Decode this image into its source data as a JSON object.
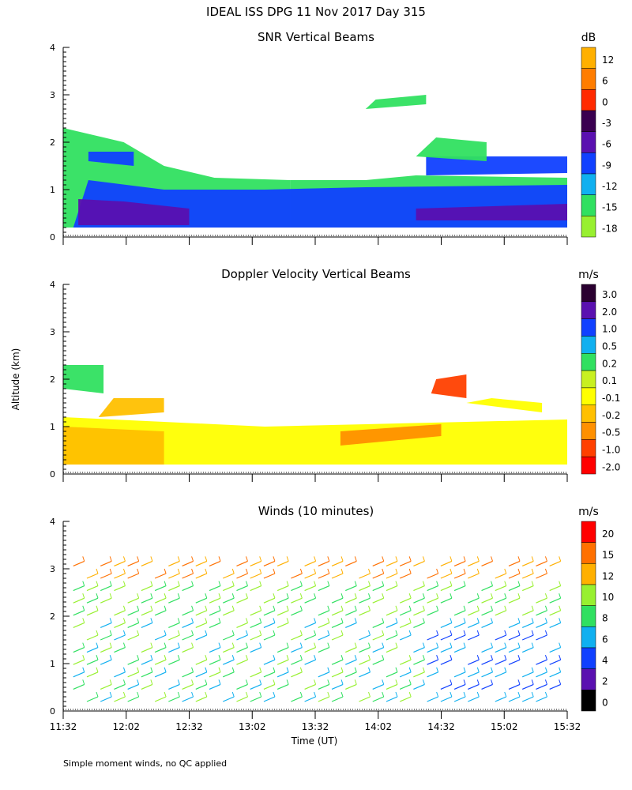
{
  "chart_data": {
    "type": "heatmap",
    "title": "IDEAL ISS DPG  11 Nov 2017 Day 315",
    "ylabel": "Altitude (km)",
    "xlabel": "Time (UT)",
    "xticks": [
      "11:32",
      "12:02",
      "12:32",
      "13:02",
      "13:32",
      "14:02",
      "14:32",
      "15:02",
      "15:32"
    ],
    "yticks": [
      "0",
      "1",
      "2",
      "3",
      "4"
    ],
    "ylim": [
      0,
      4
    ],
    "footer": "Simple moment winds, no QC applied",
    "panels": [
      {
        "key": "snr",
        "title": "SNR Vertical Beams",
        "unit": "dB",
        "colorbar_labels": [
          "12",
          "6",
          "0",
          "-3",
          "-6",
          "-9",
          "-12",
          "-15",
          "-18"
        ],
        "colors": [
          "#ffb000",
          "#ff7d00",
          "#ff2a00",
          "#3a0050",
          "#5a10b0",
          "#1040ff",
          "#10b0f0",
          "#30e060",
          "#98f030"
        ],
        "layers": [
          {
            "color": "#30e060",
            "pts": [
              [
                0.0,
                0.2
              ],
              [
                0.45,
                0.2
              ],
              [
                0.45,
                1.2
              ],
              [
                0.3,
                1.25
              ],
              [
                0.2,
                1.5
              ],
              [
                0.12,
                2.0
              ],
              [
                0.0,
                2.3
              ]
            ]
          },
          {
            "color": "#30e060",
            "pts": [
              [
                0.45,
                0.2
              ],
              [
                1.0,
                0.2
              ],
              [
                1.0,
                1.25
              ],
              [
                0.7,
                1.3
              ],
              [
                0.6,
                1.2
              ],
              [
                0.45,
                1.2
              ]
            ]
          },
          {
            "color": "#1040ff",
            "pts": [
              [
                0.02,
                0.2
              ],
              [
                1.0,
                0.2
              ],
              [
                1.0,
                1.1
              ],
              [
                0.6,
                1.05
              ],
              [
                0.4,
                1.0
              ],
              [
                0.2,
                1.0
              ],
              [
                0.05,
                1.2
              ]
            ]
          },
          {
            "color": "#5a10b0",
            "pts": [
              [
                0.03,
                0.25
              ],
              [
                0.25,
                0.25
              ],
              [
                0.25,
                0.6
              ],
              [
                0.12,
                0.75
              ],
              [
                0.03,
                0.8
              ]
            ]
          },
          {
            "color": "#5a10b0",
            "pts": [
              [
                0.7,
                0.35
              ],
              [
                1.0,
                0.35
              ],
              [
                1.0,
                0.7
              ],
              [
                0.7,
                0.6
              ]
            ]
          },
          {
            "color": "#1040ff",
            "pts": [
              [
                0.72,
                1.3
              ],
              [
                1.0,
                1.35
              ],
              [
                1.0,
                1.7
              ],
              [
                0.72,
                1.7
              ]
            ]
          },
          {
            "color": "#1040ff",
            "pts": [
              [
                0.05,
                1.6
              ],
              [
                0.14,
                1.5
              ],
              [
                0.14,
                1.8
              ],
              [
                0.05,
                1.8
              ]
            ]
          },
          {
            "color": "#30e060",
            "pts": [
              [
                0.7,
                1.7
              ],
              [
                0.84,
                1.6
              ],
              [
                0.84,
                2.0
              ],
              [
                0.74,
                2.1
              ]
            ]
          },
          {
            "color": "#30e060",
            "pts": [
              [
                0.6,
                2.7
              ],
              [
                0.72,
                2.8
              ],
              [
                0.72,
                3.0
              ],
              [
                0.62,
                2.9
              ]
            ]
          }
        ]
      },
      {
        "key": "doppler",
        "title": "Doppler Velocity Vertical Beams",
        "unit": "m/s",
        "colorbar_labels": [
          "3.0",
          "2.0",
          "1.0",
          "0.5",
          "0.2",
          "0.1",
          "-0.1",
          "-0.2",
          "-0.5",
          "-1.0",
          "-2.0"
        ],
        "colors": [
          "#2a0030",
          "#5a10b0",
          "#1040ff",
          "#10b0f0",
          "#30e060",
          "#c8f020",
          "#ffff00",
          "#ffc000",
          "#ff9000",
          "#ff4000",
          "#ff0000"
        ],
        "layers": [
          {
            "color": "#ffff00",
            "pts": [
              [
                0.0,
                0.2
              ],
              [
                1.0,
                0.2
              ],
              [
                1.0,
                1.15
              ],
              [
                0.8,
                1.1
              ],
              [
                0.6,
                1.05
              ],
              [
                0.4,
                1.0
              ],
              [
                0.2,
                1.1
              ],
              [
                0.0,
                1.2
              ]
            ]
          },
          {
            "color": "#ffc000",
            "pts": [
              [
                0.0,
                0.2
              ],
              [
                0.2,
                0.2
              ],
              [
                0.2,
                0.9
              ],
              [
                0.0,
                1.0
              ]
            ]
          },
          {
            "color": "#ff9000",
            "pts": [
              [
                0.55,
                0.6
              ],
              [
                0.75,
                0.8
              ],
              [
                0.75,
                1.05
              ],
              [
                0.55,
                0.9
              ]
            ]
          },
          {
            "color": "#ff4000",
            "pts": [
              [
                0.73,
                1.7
              ],
              [
                0.8,
                1.6
              ],
              [
                0.8,
                2.1
              ],
              [
                0.74,
                2.0
              ]
            ]
          },
          {
            "color": "#30e060",
            "pts": [
              [
                0.0,
                1.8
              ],
              [
                0.08,
                1.7
              ],
              [
                0.08,
                2.3
              ],
              [
                0.0,
                2.3
              ]
            ]
          },
          {
            "color": "#ffc000",
            "pts": [
              [
                0.07,
                1.2
              ],
              [
                0.2,
                1.3
              ],
              [
                0.2,
                1.6
              ],
              [
                0.1,
                1.6
              ]
            ]
          },
          {
            "color": "#ffff00",
            "pts": [
              [
                0.8,
                1.5
              ],
              [
                0.95,
                1.3
              ],
              [
                0.95,
                1.5
              ],
              [
                0.85,
                1.6
              ]
            ]
          }
        ]
      },
      {
        "key": "winds",
        "title": "Winds (10 minutes)",
        "unit": "m/s",
        "colorbar_labels": [
          "20",
          "15",
          "12",
          "10",
          "8",
          "6",
          "4",
          "2",
          "0"
        ],
        "colors": [
          "#ff0000",
          "#ff7000",
          "#ffb000",
          "#98f030",
          "#30e060",
          "#10b0f0",
          "#1040ff",
          "#5a10b0",
          "#000000"
        ]
      }
    ]
  }
}
